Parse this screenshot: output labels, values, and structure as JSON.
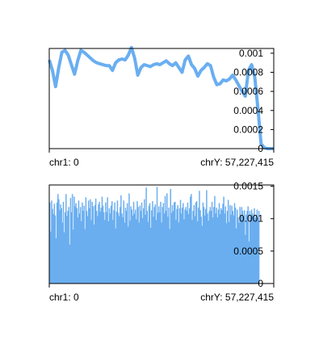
{
  "chart_data": [
    {
      "type": "line",
      "color": "#6aaef0",
      "ylim": [
        0,
        0.00105
      ],
      "yticks": [
        "0.001",
        "0.0008",
        "0.0006",
        "0.0004",
        "0.0002",
        "0"
      ],
      "ytick_values": [
        0.001,
        0.0008,
        0.0006,
        0.0004,
        0.0002,
        0
      ],
      "x_start_label": "chr1: 0",
      "x_end_label": "chrY: 57,227,415",
      "values": [
        0.00093,
        0.00082,
        0.00065,
        0.00085,
        0.00101,
        0.00103,
        0.00098,
        0.00088,
        0.00078,
        0.00092,
        0.00103,
        0.00101,
        0.00098,
        0.00095,
        0.00092,
        0.0009,
        0.00089,
        0.00088,
        0.00087,
        0.00087,
        0.00082,
        0.0009,
        0.00093,
        0.00094,
        0.00093,
        0.00098,
        0.00106,
        0.00095,
        0.00077,
        0.00085,
        0.00088,
        0.00087,
        0.00086,
        0.00088,
        0.00089,
        0.00088,
        0.0009,
        0.00092,
        0.00089,
        0.00087,
        0.0009,
        0.00085,
        0.0008,
        0.00093,
        0.00097,
        0.00088,
        0.00084,
        0.00076,
        0.00082,
        0.00085,
        0.00089,
        0.00087,
        0.00075,
        0.00067,
        0.00068,
        0.00072,
        0.00071,
        0.00073,
        0.00077,
        0.00072,
        0.00066,
        0.0006,
        0.00055,
        0.00082,
        0.00088,
        0.00075,
        0.00042,
        5e-05,
        1e-05,
        0.0,
        0.0,
        0.0
      ]
    },
    {
      "type": "bar",
      "color": "#6aaef0",
      "ylim": [
        0,
        0.00152
      ],
      "yticks": [
        "0.0015",
        "0.001",
        "0.0005",
        "0"
      ],
      "ytick_values": [
        0.0015,
        0.001,
        0.0005,
        0
      ],
      "x_start_label": "chr1: 0",
      "x_end_label": "chrY: 57,227,415",
      "values": [
        0.00125,
        0.0008,
        0.00128,
        0.00115,
        0.00107,
        0.00123,
        0.00105,
        0.0007,
        0.00125,
        0.00138,
        0.0013,
        0.00113,
        0.00122,
        0.00116,
        0.00094,
        0.00126,
        0.00079,
        0.0011,
        0.00138,
        0.00104,
        0.00112,
        0.00118,
        0.0006,
        0.00132,
        0.0011,
        0.00138,
        0.00083,
        0.00134,
        0.00119,
        0.00124,
        0.00116,
        0.00102,
        0.00128,
        0.00108,
        0.00118,
        0.00096,
        0.00125,
        0.00112,
        0.0012,
        0.00084,
        0.00133,
        0.00112,
        0.00104,
        0.00128,
        0.00116,
        0.0013,
        0.00098,
        0.00126,
        0.00119,
        0.00091,
        0.00121,
        0.00131,
        0.00112,
        0.00104,
        0.00122,
        0.00126,
        0.00111,
        0.00117,
        0.00134,
        0.0012,
        0.0011,
        0.00098,
        0.00125,
        0.0011,
        0.00133,
        0.00096,
        0.00116,
        0.00108,
        0.0012,
        0.00127,
        0.00098,
        0.00113,
        0.00125,
        0.00085,
        0.00111,
        0.00128,
        0.00109,
        0.00104,
        0.00118,
        0.00136,
        0.00108,
        0.00102,
        0.00128,
        0.00094,
        0.00117,
        0.00112,
        0.00124,
        0.00088,
        0.00139,
        0.00097,
        0.00119,
        0.00114,
        0.00105,
        0.00126,
        0.00108,
        0.00114,
        0.00099,
        0.00127,
        0.00118,
        0.00094,
        0.0012,
        0.00112,
        0.00125,
        0.00101,
        0.00116,
        0.0013,
        0.00106,
        0.00148,
        0.00112,
        0.00095,
        0.0012,
        0.00124,
        0.00086,
        0.00113,
        0.00127,
        0.00103,
        0.00118,
        0.00122,
        0.00098,
        0.00149,
        0.00109,
        0.00119,
        0.0011,
        0.00126,
        0.00094,
        0.00118,
        0.00124,
        0.00108,
        0.00135,
        0.00112,
        0.00139,
        0.00103,
        0.00117,
        0.00084,
        0.00146,
        0.00109,
        0.00121,
        0.00112,
        0.00125,
        0.00126,
        0.00098,
        0.00115,
        0.00121,
        0.00094,
        0.00116,
        0.00129,
        0.00108,
        0.00117,
        0.00124,
        0.00099,
        0.00114,
        0.00118,
        0.00112,
        0.00125,
        0.00107,
        0.00116,
        0.00134,
        0.00138,
        0.00098,
        0.00112,
        0.00121,
        0.00104,
        0.00125,
        0.00127,
        0.00096,
        0.00117,
        0.00143,
        0.00113,
        0.00103,
        0.00089,
        0.00125,
        0.00118,
        0.00105,
        0.00115,
        0.00144,
        0.00108,
        0.00097,
        0.00112,
        0.00118,
        0.00112,
        0.00126,
        0.00102,
        0.00118,
        0.00135,
        0.00108,
        0.00117,
        0.00102,
        0.00114,
        0.00124,
        0.00107,
        0.00116,
        0.00113,
        0.00123,
        0.00134,
        0.00108,
        0.00119,
        0.00093,
        0.00112,
        0.00129,
        0.00095,
        0.00121,
        0.00106,
        0.0012,
        0.00112,
        0.00105,
        0.00124,
        0.00117,
        0.00085,
        0.00114,
        0.00102,
        0.00094,
        0.00118,
        0.00105,
        0.00118,
        0.00112,
        0.001,
        0.00113,
        0.00075,
        0.00106,
        0.00112,
        0.00119,
        0.00065,
        0.00112,
        0.00103,
        0.00114,
        0.00108,
        0.00097,
        0.00116,
        0.00101,
        0.00106,
        0.00114,
        0.00102,
        0.00112
      ]
    }
  ]
}
